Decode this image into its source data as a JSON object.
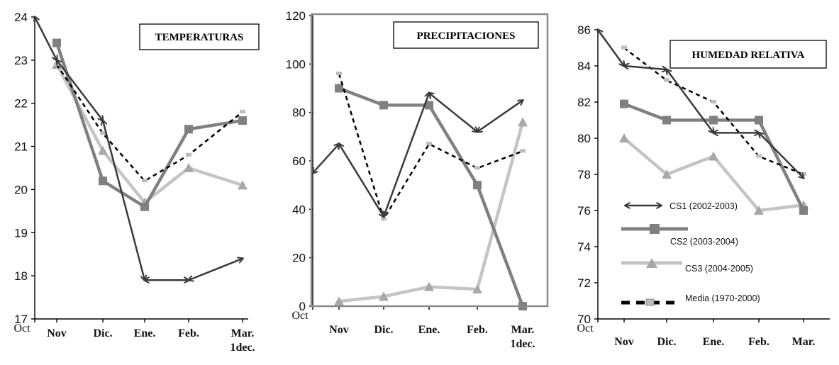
{
  "colors": {
    "cs1": "#3a3a3a",
    "cs2": "#808080",
    "cs3": "#c4c4c4",
    "media_dark": "#000000",
    "media_light": "#bdbdbd",
    "frame": "#8a8a8a"
  },
  "legend": {
    "cs1": "CS1 (2002-2003)",
    "cs2": "CS2 (2003-2004)",
    "cs3": "CS3 (2004-2005)",
    "media": "Media (1970-2000)"
  },
  "chart_data": [
    {
      "type": "line",
      "title": "TEMPERATURAS",
      "categories": [
        "Oct",
        "Nov",
        "Dic.",
        "Ene.",
        "Feb.",
        "Mar. 1dec."
      ],
      "ylim": [
        17,
        24
      ],
      "yticks": [
        "17",
        "18",
        "19",
        "20",
        "21",
        "22",
        "23",
        "24"
      ],
      "series": [
        {
          "key": "cs1",
          "values": [
            24,
            23,
            21.6,
            17.9,
            17.9,
            18.4
          ]
        },
        {
          "key": "cs2",
          "values": [
            null,
            23.4,
            20.2,
            19.6,
            21.4,
            21.6
          ]
        },
        {
          "key": "cs3",
          "values": [
            null,
            22.9,
            20.9,
            19.7,
            20.5,
            20.1
          ]
        },
        {
          "key": "media",
          "values": [
            null,
            22.9,
            21.3,
            20.2,
            20.8,
            21.8
          ]
        }
      ]
    },
    {
      "type": "line",
      "title": "PRECIPITACIONES",
      "categories": [
        "Oct",
        "Nov",
        "Dic.",
        "Ene.",
        "Feb.",
        "Mar. 1dec."
      ],
      "ylim": [
        0,
        120
      ],
      "yticks": [
        "0",
        "20",
        "40",
        "60",
        "80",
        "100",
        "120"
      ],
      "series": [
        {
          "key": "cs1",
          "values": [
            55,
            67,
            37,
            88,
            72,
            85
          ]
        },
        {
          "key": "cs2",
          "values": [
            null,
            90,
            83,
            83,
            50,
            0
          ]
        },
        {
          "key": "cs3",
          "values": [
            null,
            2,
            4,
            8,
            7,
            76
          ]
        },
        {
          "key": "media",
          "values": [
            null,
            96,
            36,
            67,
            57,
            64
          ]
        }
      ]
    },
    {
      "type": "line",
      "title": "HUMEDAD RELATIVA",
      "categories": [
        "Oct",
        "Nov",
        "Dic.",
        "Ene.",
        "Feb.",
        "Mar."
      ],
      "ylim": [
        70,
        86
      ],
      "yticks": [
        "70",
        "72",
        "74",
        "76",
        "78",
        "80",
        "82",
        "84",
        "86"
      ],
      "series": [
        {
          "key": "cs1",
          "values": [
            86,
            84,
            83.8,
            80.3,
            80.3,
            77.8
          ]
        },
        {
          "key": "cs2",
          "values": [
            null,
            81.9,
            81,
            81,
            81,
            76
          ]
        },
        {
          "key": "cs3",
          "values": [
            null,
            80,
            78,
            79,
            76,
            76.3
          ]
        },
        {
          "key": "media",
          "values": [
            null,
            85,
            83.2,
            82,
            79,
            78
          ]
        }
      ]
    }
  ]
}
